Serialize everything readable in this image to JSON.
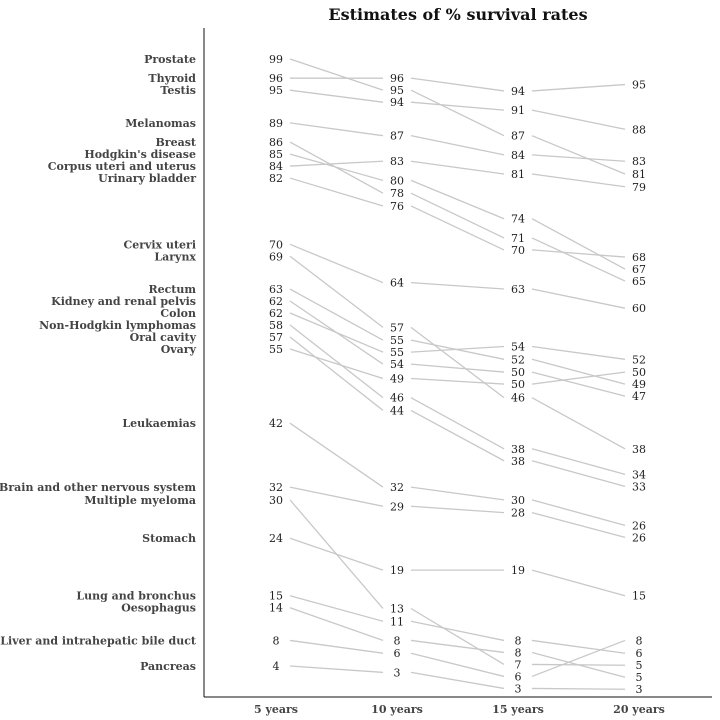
{
  "chart_data": {
    "type": "line",
    "title": "Estimates of % survival rates",
    "x": [
      "5 years",
      "10 years",
      "15 years",
      "20 years"
    ],
    "ylim": [
      0,
      102
    ],
    "series": [
      {
        "name": "Prostate",
        "values": [
          99,
          95,
          87,
          81
        ]
      },
      {
        "name": "Thyroid",
        "values": [
          96,
          96,
          94,
          95
        ]
      },
      {
        "name": "Testis",
        "values": [
          95,
          94,
          91,
          88
        ]
      },
      {
        "name": "Melanomas",
        "values": [
          89,
          87,
          84,
          83
        ]
      },
      {
        "name": "Breast",
        "values": [
          86,
          78,
          71,
          65
        ]
      },
      {
        "name": "Hodgkin's disease",
        "values": [
          85,
          80,
          74,
          67
        ]
      },
      {
        "name": "Corpus uteri and uterus",
        "values": [
          84,
          83,
          81,
          79
        ]
      },
      {
        "name": "Urinary bladder",
        "values": [
          82,
          76,
          70,
          68
        ]
      },
      {
        "name": "Cervix uteri",
        "values": [
          70,
          64,
          63,
          60
        ]
      },
      {
        "name": "Larynx",
        "values": [
          69,
          57,
          46,
          38
        ]
      },
      {
        "name": "Rectum",
        "values": [
          63,
          55,
          52,
          49
        ]
      },
      {
        "name": "Kidney and renal pelvis",
        "values": [
          62,
          54,
          50,
          47
        ]
      },
      {
        "name": "Colon",
        "values": [
          62,
          55,
          54,
          52
        ]
      },
      {
        "name": "Non-Hodgkin lymphomas",
        "values": [
          58,
          46,
          38,
          34
        ]
      },
      {
        "name": "Oral cavity",
        "values": [
          57,
          44,
          38,
          33
        ]
      },
      {
        "name": "Ovary",
        "values": [
          55,
          49,
          50,
          50
        ]
      },
      {
        "name": "Leukaemias",
        "values": [
          42,
          32,
          30,
          26
        ]
      },
      {
        "name": "Brain and other nervous system",
        "values": [
          32,
          29,
          28,
          26
        ]
      },
      {
        "name": "Multiple myeloma",
        "values": [
          30,
          13,
          7,
          5
        ]
      },
      {
        "name": "Stomach",
        "values": [
          24,
          19,
          19,
          15
        ]
      },
      {
        "name": "Lung and bronchus",
        "values": [
          15,
          11,
          8,
          6
        ]
      },
      {
        "name": "Oesophagus",
        "values": [
          14,
          8,
          8,
          5
        ]
      },
      {
        "name": "Liver and intrahepatic bile duct",
        "values": [
          8,
          6,
          6,
          8
        ]
      },
      {
        "name": "Pancreas",
        "values": [
          4,
          3,
          3,
          3
        ]
      }
    ]
  }
}
